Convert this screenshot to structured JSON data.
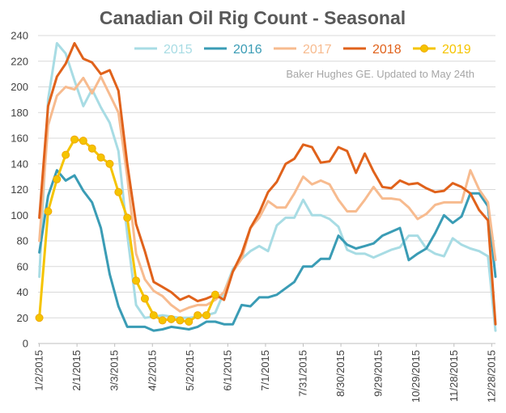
{
  "chart_data": {
    "type": "line",
    "title": "Canadian Oil Rig Count - Seasonal",
    "annotation": "Baker Hughes GE. Updated to May 24th",
    "xlabel": "",
    "ylabel": "",
    "ylim": [
      0,
      240
    ],
    "yticks": [
      0,
      20,
      40,
      60,
      80,
      100,
      120,
      140,
      160,
      180,
      200,
      220,
      240
    ],
    "xlim": [
      "2015-01-01",
      "2015-12-31"
    ],
    "xticks": [
      "1/2/2015",
      "2/1/2015",
      "3/3/2015",
      "4/2/2015",
      "5/2/2015",
      "6/1/2015",
      "7/1/2015",
      "7/31/2015",
      "8/30/2015",
      "9/29/2015",
      "10/29/2015",
      "11/28/2015",
      "12/28/2015"
    ],
    "grid": "horizontal",
    "legend_position": "top",
    "x_dates": [
      "2015-01-02",
      "2015-01-09",
      "2015-01-16",
      "2015-01-23",
      "2015-01-30",
      "2015-02-06",
      "2015-02-13",
      "2015-02-20",
      "2015-02-27",
      "2015-03-06",
      "2015-03-13",
      "2015-03-20",
      "2015-03-27",
      "2015-04-03",
      "2015-04-10",
      "2015-04-17",
      "2015-04-24",
      "2015-05-01",
      "2015-05-08",
      "2015-05-15",
      "2015-05-22",
      "2015-05-29",
      "2015-06-05",
      "2015-06-12",
      "2015-06-19",
      "2015-06-26",
      "2015-07-03",
      "2015-07-10",
      "2015-07-17",
      "2015-07-24",
      "2015-07-31",
      "2015-08-07",
      "2015-08-14",
      "2015-08-21",
      "2015-08-28",
      "2015-09-04",
      "2015-09-11",
      "2015-09-18",
      "2015-09-25",
      "2015-10-02",
      "2015-10-09",
      "2015-10-16",
      "2015-10-23",
      "2015-10-30",
      "2015-11-06",
      "2015-11-13",
      "2015-11-20",
      "2015-11-27",
      "2015-12-04",
      "2015-12-11",
      "2015-12-18",
      "2015-12-25",
      "2015-12-31"
    ],
    "series": [
      {
        "name": "2015",
        "color": "#a8dce4",
        "marker": false,
        "values": [
          52,
          190,
          234,
          226,
          205,
          185,
          198,
          184,
          172,
          150,
          85,
          30,
          20,
          21,
          22,
          21,
          20,
          20,
          21,
          22,
          24,
          40,
          58,
          66,
          72,
          76,
          72,
          92,
          98,
          98,
          112,
          100,
          100,
          97,
          91,
          73,
          70,
          70,
          67,
          70,
          73,
          75,
          84,
          84,
          74,
          70,
          68,
          82,
          77,
          74,
          72,
          68,
          10
        ]
      },
      {
        "name": "2016",
        "color": "#3a9cb5",
        "marker": false,
        "values": [
          71,
          115,
          135,
          127,
          131,
          119,
          110,
          90,
          54,
          29,
          13,
          13,
          13,
          10,
          11,
          13,
          12,
          11,
          13,
          17,
          17,
          15,
          15,
          30,
          29,
          36,
          36,
          38,
          43,
          48,
          60,
          60,
          66,
          66,
          84,
          77,
          74,
          76,
          78,
          84,
          87,
          90,
          65,
          70,
          74,
          86,
          100,
          94,
          99,
          117,
          117,
          107,
          52
        ]
      },
      {
        "name": "2017",
        "color": "#f7bb8f",
        "marker": false,
        "values": [
          80,
          170,
          193,
          200,
          198,
          207,
          195,
          208,
          194,
          180,
          130,
          70,
          50,
          41,
          37,
          30,
          25,
          28,
          30,
          30,
          34,
          40,
          56,
          66,
          90,
          98,
          111,
          106,
          106,
          117,
          130,
          124,
          127,
          124,
          112,
          103,
          103,
          112,
          122,
          113,
          113,
          112,
          106,
          97,
          101,
          108,
          110,
          110,
          110,
          135,
          120,
          110,
          65
        ]
      },
      {
        "name": "2018",
        "color": "#e0621b",
        "marker": false,
        "values": [
          98,
          185,
          208,
          218,
          234,
          222,
          219,
          210,
          213,
          197,
          140,
          93,
          72,
          48,
          44,
          40,
          34,
          37,
          33,
          35,
          38,
          34,
          56,
          70,
          90,
          102,
          118,
          126,
          140,
          144,
          155,
          153,
          141,
          142,
          153,
          150,
          133,
          148,
          134,
          122,
          121,
          127,
          124,
          125,
          121,
          118,
          119,
          125,
          122,
          117,
          104,
          96,
          15
        ]
      },
      {
        "name": "2019",
        "color": "#f5c400",
        "marker": true,
        "values": [
          20,
          103,
          128,
          147,
          159,
          158,
          152,
          145,
          140,
          118,
          98,
          49,
          35,
          22,
          18,
          19,
          18,
          17,
          22,
          22,
          38
        ]
      }
    ]
  }
}
